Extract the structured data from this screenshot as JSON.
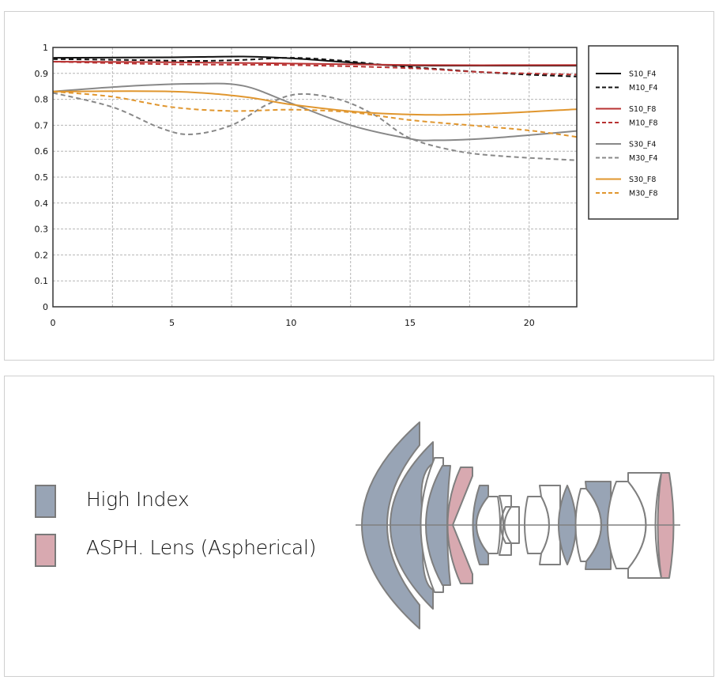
{
  "chart_data": {
    "type": "line",
    "title": "",
    "xlabel": "",
    "ylabel": "",
    "xlim": [
      0,
      22
    ],
    "ylim": [
      0,
      1
    ],
    "x_ticks": [
      0,
      5,
      10,
      15,
      20
    ],
    "x_tick_labels": [
      "0",
      "5",
      "10",
      "15",
      "20"
    ],
    "y_ticks": [
      0,
      0.1,
      0.2,
      0.3,
      0.4,
      0.5,
      0.6,
      0.7,
      0.8,
      0.9,
      1
    ],
    "y_tick_labels": [
      "0",
      "0.1",
      "0.2",
      "0.3",
      "0.4",
      "0.5",
      "0.6",
      "0.7",
      "0.8",
      "0.9",
      "1"
    ],
    "x_grid_step": 2.5,
    "grid": true,
    "legend_position": "right",
    "series": [
      {
        "name": "S10_F4",
        "color": "#111111",
        "dash": false,
        "x": [
          0,
          5,
          8,
          10,
          12,
          14,
          16,
          22
        ],
        "y": [
          0.96,
          0.962,
          0.965,
          0.958,
          0.945,
          0.932,
          0.93,
          0.93
        ]
      },
      {
        "name": "M10_F4",
        "color": "#111111",
        "dash": true,
        "x": [
          0,
          3,
          6,
          8,
          10,
          12,
          14,
          16,
          18,
          20,
          22
        ],
        "y": [
          0.955,
          0.952,
          0.948,
          0.952,
          0.96,
          0.95,
          0.932,
          0.918,
          0.905,
          0.895,
          0.888
        ]
      },
      {
        "name": "S10_F8",
        "color": "#b83232",
        "dash": false,
        "x": [
          0,
          5,
          10,
          15,
          22
        ],
        "y": [
          0.945,
          0.943,
          0.938,
          0.932,
          0.932
        ]
      },
      {
        "name": "M10_F8",
        "color": "#b83232",
        "dash": true,
        "x": [
          0,
          5,
          10,
          15,
          18,
          22
        ],
        "y": [
          0.945,
          0.935,
          0.932,
          0.92,
          0.905,
          0.895
        ]
      },
      {
        "name": "S30_F4",
        "color": "#888888",
        "dash": false,
        "x": [
          0,
          3,
          6,
          8,
          10,
          12.5,
          15,
          16,
          18,
          20,
          22
        ],
        "y": [
          0.83,
          0.85,
          0.86,
          0.852,
          0.785,
          0.7,
          0.648,
          0.642,
          0.648,
          0.662,
          0.678
        ]
      },
      {
        "name": "M30_F4",
        "color": "#888888",
        "dash": true,
        "x": [
          0,
          2.5,
          4.5,
          5.8,
          7.5,
          9,
          10.3,
          12,
          13.5,
          15,
          17,
          19,
          22
        ],
        "y": [
          0.825,
          0.77,
          0.69,
          0.665,
          0.7,
          0.78,
          0.82,
          0.8,
          0.74,
          0.65,
          0.6,
          0.58,
          0.565
        ]
      },
      {
        "name": "S30_F8",
        "color": "#e0962e",
        "dash": false,
        "x": [
          0,
          5,
          8,
          10,
          13,
          16,
          18.5,
          22
        ],
        "y": [
          0.83,
          0.83,
          0.81,
          0.78,
          0.75,
          0.74,
          0.745,
          0.762
        ]
      },
      {
        "name": "M30_F8",
        "color": "#e0962e",
        "dash": true,
        "x": [
          0,
          2.5,
          5,
          7.5,
          10,
          12.5,
          15,
          17.5,
          20,
          22
        ],
        "y": [
          0.83,
          0.81,
          0.77,
          0.755,
          0.76,
          0.75,
          0.72,
          0.7,
          0.68,
          0.655
        ]
      }
    ]
  },
  "lens_legend": {
    "items": [
      {
        "label": "High Index",
        "color": "#98a4b5"
      },
      {
        "label": "ASPH. Lens (Aspherical)",
        "color": "#d8a9b0"
      }
    ]
  }
}
